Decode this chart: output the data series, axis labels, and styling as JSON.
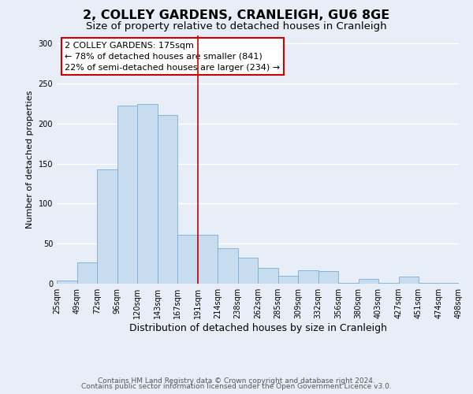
{
  "title": "2, COLLEY GARDENS, CRANLEIGH, GU6 8GE",
  "subtitle": "Size of property relative to detached houses in Cranleigh",
  "xlabel": "Distribution of detached houses by size in Cranleigh",
  "ylabel": "Number of detached properties",
  "bar_values": [
    4,
    27,
    143,
    222,
    224,
    211,
    61,
    61,
    44,
    32,
    20,
    10,
    17,
    16,
    1,
    6,
    1,
    9,
    1,
    1
  ],
  "bar_labels": [
    "25sqm",
    "49sqm",
    "72sqm",
    "96sqm",
    "120sqm",
    "143sqm",
    "167sqm",
    "191sqm",
    "214sqm",
    "238sqm",
    "262sqm",
    "285sqm",
    "309sqm",
    "332sqm",
    "356sqm",
    "380sqm",
    "403sqm",
    "427sqm",
    "451sqm",
    "474sqm",
    "498sqm"
  ],
  "bar_color": "#c8dcf0",
  "bar_edge_color": "#7aadd4",
  "vline_color": "#cc0000",
  "annotation_title": "2 COLLEY GARDENS: 175sqm",
  "annotation_line1": "← 78% of detached houses are smaller (841)",
  "annotation_line2": "22% of semi-detached houses are larger (234) →",
  "annotation_box_color": "#ffffff",
  "annotation_box_edge": "#cc0000",
  "ylim": [
    0,
    310
  ],
  "yticks": [
    0,
    50,
    100,
    150,
    200,
    250,
    300
  ],
  "footer1": "Contains HM Land Registry data © Crown copyright and database right 2024.",
  "footer2": "Contains public sector information licensed under the Open Government Licence v3.0.",
  "bg_color": "#e8eef7",
  "plot_bg_color": "#e8eef7",
  "grid_color": "#ffffff",
  "title_fontsize": 11.5,
  "subtitle_fontsize": 9.5,
  "xlabel_fontsize": 9,
  "ylabel_fontsize": 8,
  "tick_fontsize": 7,
  "footer_fontsize": 6.5,
  "annotation_fontsize": 8
}
